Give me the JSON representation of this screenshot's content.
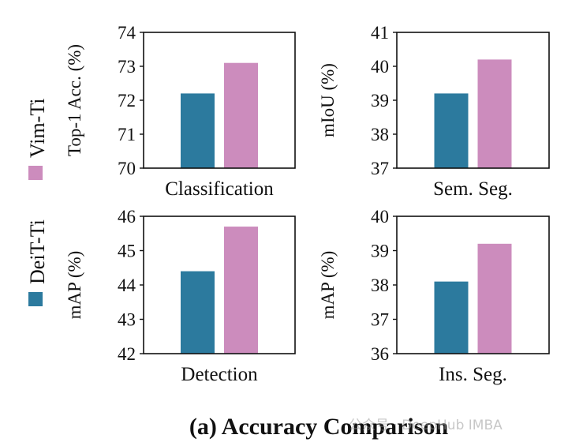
{
  "caption": "(a) Accuracy Comparison",
  "watermark": "公众号 · DeepHub IMBA",
  "colors": {
    "DeiT-Ti": "#2c7a9e",
    "Vim-Ti": "#cc8cbd"
  },
  "legend": {
    "position": "left",
    "items": [
      "DeiT-Ti",
      "Vim-Ti"
    ]
  },
  "chart_data": [
    {
      "type": "bar",
      "xlabel": "Classification",
      "ylabel": "Top-1 Acc. (%)",
      "ylim": [
        70,
        74
      ],
      "yticks": [
        70,
        71,
        72,
        73,
        74
      ],
      "series": [
        {
          "name": "DeiT-Ti",
          "values": [
            72.2
          ]
        },
        {
          "name": "Vim-Ti",
          "values": [
            73.1
          ]
        }
      ]
    },
    {
      "type": "bar",
      "xlabel": "Sem. Seg.",
      "ylabel": "mIoU (%)",
      "ylim": [
        37,
        41
      ],
      "yticks": [
        37,
        38,
        39,
        40,
        41
      ],
      "series": [
        {
          "name": "DeiT-Ti",
          "values": [
            39.2
          ]
        },
        {
          "name": "Vim-Ti",
          "values": [
            40.2
          ]
        }
      ]
    },
    {
      "type": "bar",
      "xlabel": "Detection",
      "ylabel": "mAP (%)",
      "ylim": [
        42,
        46
      ],
      "yticks": [
        42,
        43,
        44,
        45,
        46
      ],
      "series": [
        {
          "name": "DeiT-Ti",
          "values": [
            44.4
          ]
        },
        {
          "name": "Vim-Ti",
          "values": [
            45.7
          ]
        }
      ]
    },
    {
      "type": "bar",
      "xlabel": "Ins. Seg.",
      "ylabel": "mAP (%)",
      "ylim": [
        36,
        40
      ],
      "yticks": [
        36,
        37,
        38,
        39,
        40
      ],
      "series": [
        {
          "name": "DeiT-Ti",
          "values": [
            38.1
          ]
        },
        {
          "name": "Vim-Ti",
          "values": [
            39.2
          ]
        }
      ]
    }
  ]
}
